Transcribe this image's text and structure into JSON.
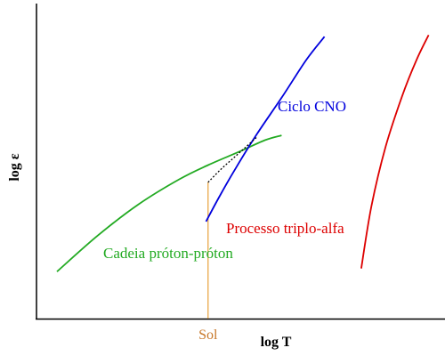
{
  "chart_data": {
    "type": "line",
    "xlabel": "log T",
    "ylabel": "log ε",
    "grid": false,
    "legend": "none",
    "xlim": [
      0,
      10
    ],
    "ylim": [
      0,
      10
    ],
    "series": [
      {
        "name": "Cadeia próton-próton",
        "color": "#22aa22",
        "x": [
          0.5,
          1.5,
          2.5,
          3.5,
          4.2,
          5.0,
          5.6,
          6.0
        ],
        "y": [
          1.5,
          2.65,
          3.65,
          4.45,
          4.9,
          5.35,
          5.7,
          5.85
        ]
      },
      {
        "name": "Ciclo CNO",
        "color": "#0000dd",
        "x": [
          4.15,
          4.5,
          4.9,
          5.4,
          6.0,
          6.6,
          7.05
        ],
        "y": [
          3.1,
          3.95,
          4.85,
          5.9,
          7.05,
          8.25,
          9.0
        ]
      },
      {
        "name": "Processo triplo-alfa",
        "color": "#dd0000",
        "x": [
          7.95,
          8.2,
          8.55,
          8.95,
          9.3,
          9.6
        ],
        "y": [
          1.6,
          3.6,
          5.5,
          7.1,
          8.25,
          9.05
        ]
      }
    ],
    "transition": {
      "style": "dotted",
      "x": [
        4.2,
        4.5,
        4.8,
        5.1,
        5.4
      ],
      "y": [
        4.35,
        4.75,
        5.1,
        5.45,
        5.8
      ]
    },
    "sun_marker": {
      "label": "Sol",
      "x": 4.2,
      "y": 4.35,
      "color": "#e8a23a"
    }
  }
}
